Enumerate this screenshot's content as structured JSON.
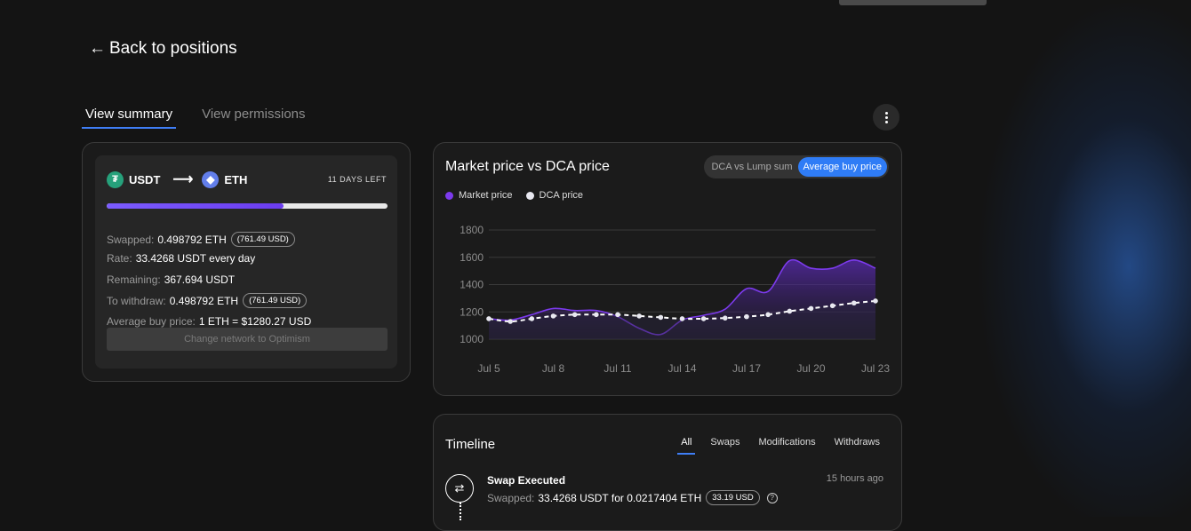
{
  "nav": {
    "back_label": "Back to positions"
  },
  "tabs": [
    {
      "label": "View summary",
      "active": true
    },
    {
      "label": "View permissions",
      "active": false
    }
  ],
  "summary": {
    "from_token": "USDT",
    "to_token": "ETH",
    "days_left": "11 DAYS LEFT",
    "progress_fraction": 0.63,
    "swapped_label": "Swapped:",
    "swapped_value": "0.498792 ETH",
    "swapped_usd": "(761.49 USD)",
    "rate_label": "Rate:",
    "rate_value": "33.4268 USDT every day",
    "remaining_label": "Remaining:",
    "remaining_value": "367.694 USDT",
    "withdraw_label": "To withdraw:",
    "withdraw_value": "0.498792 ETH",
    "withdraw_usd": "(761.49 USD)",
    "avg_label": "Average buy price:",
    "avg_value": "1 ETH = $1280.27 USD",
    "network_button": "Change network to Optimism"
  },
  "chart": {
    "toggle": {
      "options": [
        "DCA vs Lump sum",
        "Average buy price"
      ],
      "selected": "Average buy price"
    },
    "colors": {
      "market": "#7c3aed",
      "dca": "#ffffff"
    }
  },
  "chart_data": {
    "type": "line",
    "title": "Market price vs DCA price",
    "legend": [
      "Market price",
      "DCA price"
    ],
    "x_tick_labels": [
      "Jul 5",
      "Jul 8",
      "Jul 11",
      "Jul 14",
      "Jul 17",
      "Jul 20",
      "Jul 23"
    ],
    "y_ticks": [
      1000,
      1200,
      1400,
      1600,
      1800
    ],
    "x": [
      0,
      1,
      2,
      3,
      4,
      5,
      6,
      7,
      8,
      9,
      10,
      11,
      12,
      13,
      14,
      15,
      16,
      17,
      18
    ],
    "series": [
      {
        "name": "Market price",
        "values": [
          1150,
          1140,
          1180,
          1225,
          1210,
          1210,
          1165,
          1080,
          1035,
          1140,
          1175,
          1220,
          1370,
          1350,
          1575,
          1520,
          1520,
          1580,
          1520
        ]
      },
      {
        "name": "DCA price",
        "values": [
          1150,
          1130,
          1150,
          1170,
          1180,
          1180,
          1180,
          1170,
          1160,
          1150,
          1150,
          1155,
          1165,
          1180,
          1205,
          1225,
          1245,
          1265,
          1280
        ]
      }
    ],
    "ylim": [
      1000,
      1800
    ]
  },
  "timeline": {
    "title": "Timeline",
    "filters": [
      "All",
      "Swaps",
      "Modifications",
      "Withdraws"
    ],
    "active_filter": "All",
    "events": [
      {
        "title": "Swap Executed",
        "desc_label": "Swapped:",
        "desc_value": "33.4268 USDT for 0.0217404 ETH",
        "usd": "33.19 USD",
        "time": "15 hours ago"
      }
    ]
  }
}
